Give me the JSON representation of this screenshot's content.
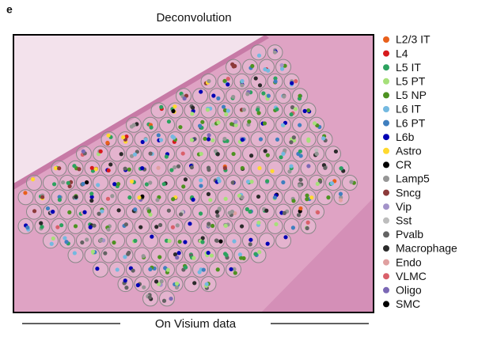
{
  "panel_label": "e",
  "title": "Deconvolution",
  "caption": "On Visium data",
  "legend": {
    "items": [
      {
        "name": "L2/3 IT",
        "color": "#e8601c"
      },
      {
        "name": "L4",
        "color": "#d7191c"
      },
      {
        "name": "L5 IT",
        "color": "#2ca25f"
      },
      {
        "name": "L5 PT",
        "color": "#a6e07a"
      },
      {
        "name": "L5 NP",
        "color": "#4d9221"
      },
      {
        "name": "L6 IT",
        "color": "#74b9e0"
      },
      {
        "name": "L6 PT",
        "color": "#3f7fbf"
      },
      {
        "name": "L6b",
        "color": "#0000b4"
      },
      {
        "name": "Astro",
        "color": "#ffd92f"
      },
      {
        "name": "CR",
        "color": "#000000"
      },
      {
        "name": "Lamp5",
        "color": "#969696"
      },
      {
        "name": "Sncg",
        "color": "#8c3a3a"
      },
      {
        "name": "Vip",
        "color": "#a393c9"
      },
      {
        "name": "Sst",
        "color": "#bdbdbd"
      },
      {
        "name": "Pvalb",
        "color": "#636363"
      },
      {
        "name": "Macrophage",
        "color": "#2b2b2b"
      },
      {
        "name": "Endo",
        "color": "#e0a0a0"
      },
      {
        "name": "VLMC",
        "color": "#d9606a"
      },
      {
        "name": "Oligo",
        "color": "#7b68b5"
      },
      {
        "name": "SMC",
        "color": "#000000"
      }
    ]
  }
}
